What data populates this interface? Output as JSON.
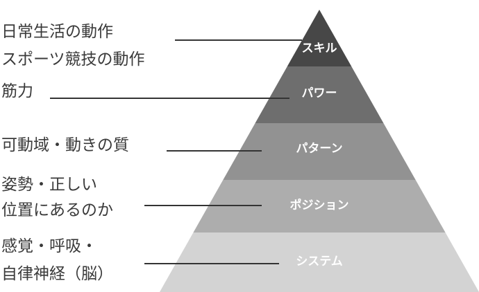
{
  "pyramid": {
    "levels": [
      {
        "label": "スキル",
        "color": "#474747"
      },
      {
        "label": "パワー",
        "color": "#6e6e6e"
      },
      {
        "label": "パターン",
        "color": "#929292"
      },
      {
        "label": "ポジション",
        "color": "#adadad"
      },
      {
        "label": "システム",
        "color": "#d3d3d3"
      }
    ]
  },
  "annotations": [
    {
      "lines": [
        "日常生活の動作",
        "スポーツ競技の動作"
      ]
    },
    {
      "lines": [
        "筋力"
      ]
    },
    {
      "lines": [
        "可動域・動きの質"
      ]
    },
    {
      "lines": [
        "姿勢・正しい",
        "位置にあるのか"
      ]
    },
    {
      "lines": [
        "感覚・呼吸・",
        "自律神経（脳）"
      ]
    }
  ],
  "connector_color": "#333333"
}
